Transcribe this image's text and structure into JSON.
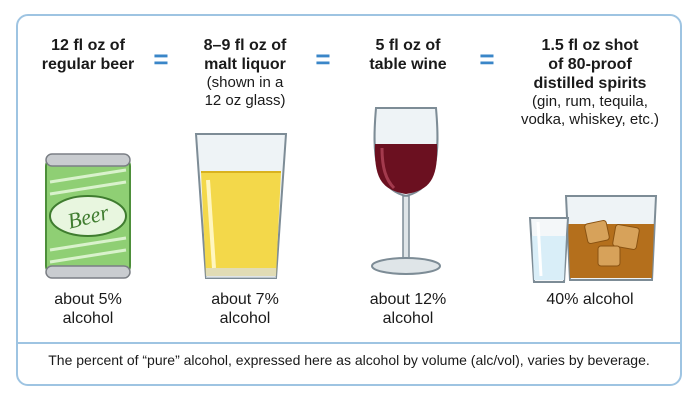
{
  "beverages": [
    {
      "heading": "12 fl oz of\nregular beer",
      "sub": "",
      "percent": "about 5%\nalcohol",
      "label_text": "Beer",
      "icon": "beer-can-icon"
    },
    {
      "heading": "8–9 fl oz of\nmalt liquor",
      "sub": "(shown in a\n12 oz glass)",
      "percent": "about 7%\nalcohol",
      "icon": "pint-glass-icon"
    },
    {
      "heading": "5 fl oz of\ntable wine",
      "sub": "",
      "percent": "about 12%\nalcohol",
      "icon": "wine-glass-icon"
    },
    {
      "heading": "1.5 fl oz shot\nof 80-proof\ndistilled spirits",
      "sub": "(gin, rum, tequila,\nvodka, whiskey, etc.)",
      "percent": "40% alcohol",
      "icon": "spirits-glasses-icon"
    }
  ],
  "equals": [
    "=",
    "=",
    "="
  ],
  "footer": "The percent of “pure” alcohol, expressed here as alcohol by volume (alc/vol), varies by beverage.",
  "colors": {
    "border": "#9ec4e2",
    "equals": "#3a86c8",
    "wine": "#6b1020",
    "beer": "#f3d84a",
    "can": "#8fcf74"
  }
}
